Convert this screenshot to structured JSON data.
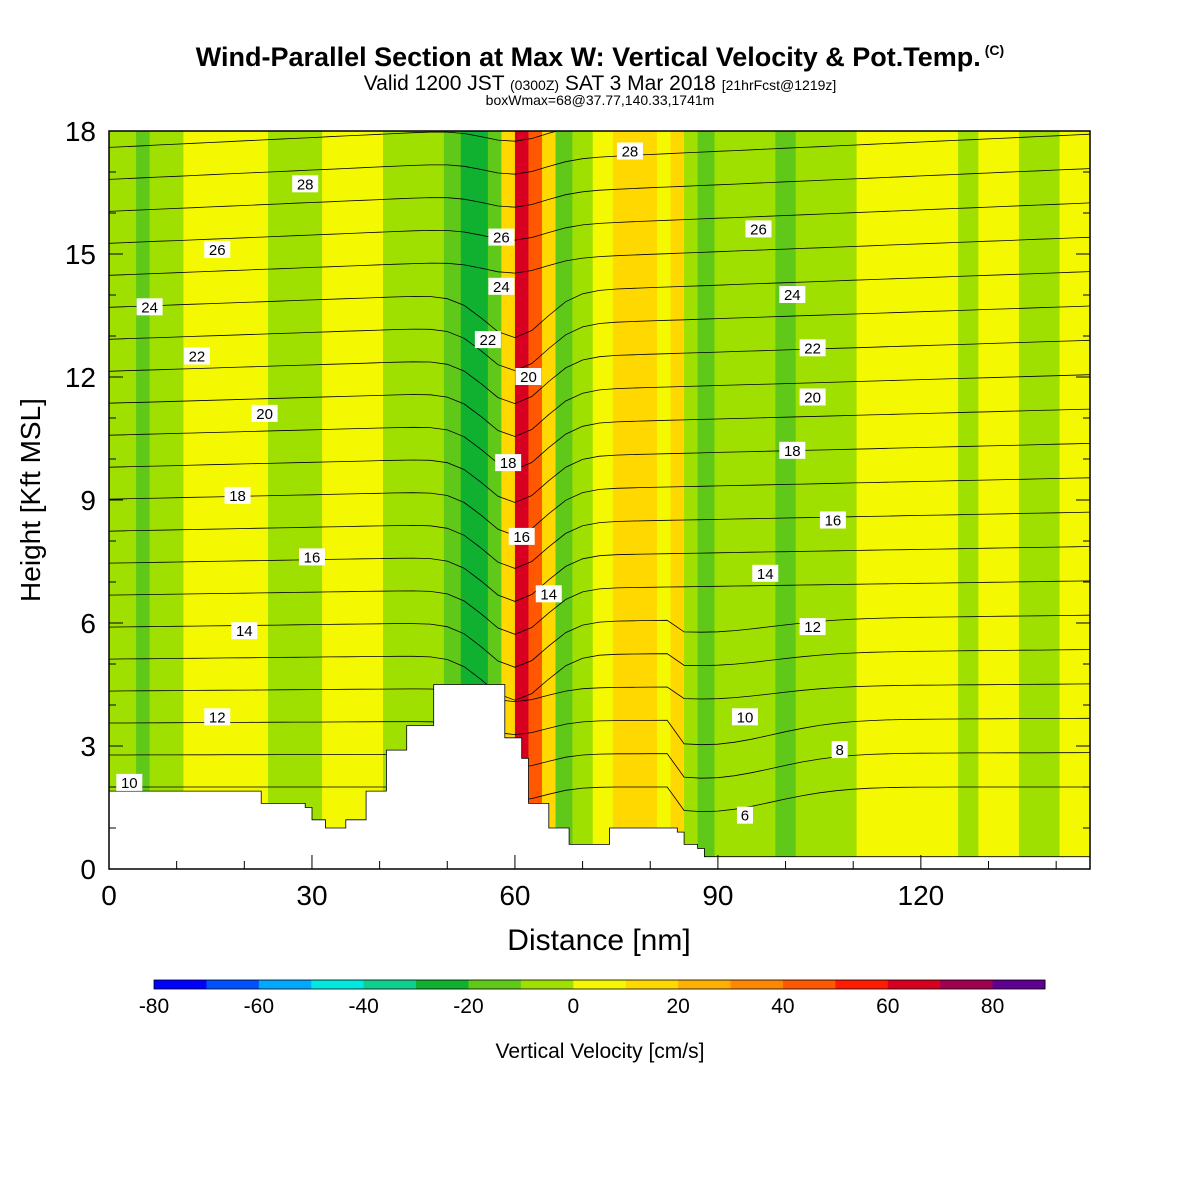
{
  "header": {
    "title": "Wind-Parallel Section at Max W: Vertical Velocity & Pot.Temp.",
    "title_suffix": "(C)",
    "subtitle_a": "Valid 1200 JST",
    "subtitle_b": "(0300Z)",
    "subtitle_c": "SAT 3 Mar 2018",
    "subtitle_d": "[21hrFcst@1219z]",
    "subtitle2": "boxWmax=68@37.77,140.33,1741m"
  },
  "chart_data": {
    "type": "heatmap",
    "title": "Wind-Parallel Section at Max W: Vertical Velocity & Pot.Temp.",
    "xlabel": "Distance [nm]",
    "ylabel": "Height [Kft MSL]",
    "xlim": [
      0,
      145
    ],
    "ylim": [
      0,
      18
    ],
    "x_ticks": [
      0,
      30,
      60,
      90,
      120
    ],
    "y_ticks": [
      0,
      3,
      6,
      9,
      12,
      15,
      18
    ],
    "colorbar": {
      "label": "Vertical Velocity [cm/s]",
      "min": -80,
      "max": 90,
      "step": 10,
      "tick_labels": [
        -80,
        -60,
        -40,
        -20,
        0,
        20,
        40,
        60,
        80
      ],
      "colors": [
        "#0000ff",
        "#0050ff",
        "#00a8ff",
        "#00e8e0",
        "#10d090",
        "#10b030",
        "#60c818",
        "#a0e000",
        "#f4f800",
        "#ffd800",
        "#ffb000",
        "#ff8800",
        "#ff5800",
        "#ff1c00",
        "#d80020",
        "#a00050",
        "#600090"
      ]
    },
    "vertical_velocity_columns": [
      {
        "x": 0,
        "w": -4
      },
      {
        "x": 3,
        "w": -6
      },
      {
        "x": 5,
        "w": -14
      },
      {
        "x": 7,
        "w": -8
      },
      {
        "x": 10,
        "w": -3
      },
      {
        "x": 12,
        "w": 1
      },
      {
        "x": 15,
        "w": 4
      },
      {
        "x": 18,
        "w": 6
      },
      {
        "x": 20,
        "w": 5
      },
      {
        "x": 22,
        "w": 3
      },
      {
        "x": 25,
        "w": -2
      },
      {
        "x": 28,
        "w": -4
      },
      {
        "x": 30,
        "w": -3
      },
      {
        "x": 33,
        "w": 0
      },
      {
        "x": 36,
        "w": 3
      },
      {
        "x": 39,
        "w": 2
      },
      {
        "x": 42,
        "w": -3
      },
      {
        "x": 45,
        "w": -6
      },
      {
        "x": 48,
        "w": -10
      },
      {
        "x": 51,
        "w": -14
      },
      {
        "x": 53,
        "w": -22
      },
      {
        "x": 55,
        "w": -30
      },
      {
        "x": 57,
        "w": -20
      },
      {
        "x": 59,
        "w": 10
      },
      {
        "x": 61,
        "w": 68
      },
      {
        "x": 63,
        "w": 45
      },
      {
        "x": 65,
        "w": 10
      },
      {
        "x": 67,
        "w": -12
      },
      {
        "x": 70,
        "w": -6
      },
      {
        "x": 73,
        "w": 4
      },
      {
        "x": 76,
        "w": 12
      },
      {
        "x": 78,
        "w": 16
      },
      {
        "x": 80,
        "w": 14
      },
      {
        "x": 82,
        "w": 6
      },
      {
        "x": 84,
        "w": 14
      },
      {
        "x": 86,
        "w": -8
      },
      {
        "x": 88,
        "w": -12
      },
      {
        "x": 91,
        "w": -10
      },
      {
        "x": 94,
        "w": -6
      },
      {
        "x": 97,
        "w": -10
      },
      {
        "x": 100,
        "w": -12
      },
      {
        "x": 103,
        "w": -10
      },
      {
        "x": 106,
        "w": -6
      },
      {
        "x": 109,
        "w": -2
      },
      {
        "x": 112,
        "w": 2
      },
      {
        "x": 115,
        "w": 5
      },
      {
        "x": 118,
        "w": 4
      },
      {
        "x": 121,
        "w": 2
      },
      {
        "x": 124,
        "w": 0
      },
      {
        "x": 127,
        "w": -2
      },
      {
        "x": 130,
        "w": 2
      },
      {
        "x": 133,
        "w": 3
      },
      {
        "x": 136,
        "w": -2
      },
      {
        "x": 139,
        "w": -4
      },
      {
        "x": 142,
        "w": 1
      },
      {
        "x": 145,
        "w": 2
      }
    ],
    "terrain_height_kft": [
      {
        "x": 0,
        "h": 1.9
      },
      {
        "x": 22,
        "h": 1.9
      },
      {
        "x": 22.5,
        "h": 1.6
      },
      {
        "x": 29,
        "h": 1.5
      },
      {
        "x": 30,
        "h": 1.2
      },
      {
        "x": 32,
        "h": 1.0
      },
      {
        "x": 35,
        "h": 1.2
      },
      {
        "x": 38,
        "h": 1.9
      },
      {
        "x": 41,
        "h": 2.9
      },
      {
        "x": 44,
        "h": 3.5
      },
      {
        "x": 48,
        "h": 4.5
      },
      {
        "x": 58,
        "h": 4.5
      },
      {
        "x": 58.5,
        "h": 3.2
      },
      {
        "x": 61,
        "h": 2.7
      },
      {
        "x": 62,
        "h": 1.6
      },
      {
        "x": 65,
        "h": 1.0
      },
      {
        "x": 68,
        "h": 0.6
      },
      {
        "x": 74,
        "h": 1.0
      },
      {
        "x": 84,
        "h": 0.9
      },
      {
        "x": 85,
        "h": 0.6
      },
      {
        "x": 87,
        "h": 0.5
      },
      {
        "x": 88,
        "h": 0.3
      },
      {
        "x": 145,
        "h": 0.3
      }
    ],
    "potential_temperature_contours": {
      "label_values": [
        "6",
        "8",
        "10",
        "12",
        "14",
        "16",
        "18",
        "20",
        "22",
        "24",
        "26",
        "28"
      ],
      "labels": [
        {
          "text": "28",
          "x": 29,
          "y": 16.7
        },
        {
          "text": "28",
          "x": 77,
          "y": 17.5
        },
        {
          "text": "26",
          "x": 16,
          "y": 15.1
        },
        {
          "text": "26",
          "x": 58,
          "y": 15.4
        },
        {
          "text": "26",
          "x": 96,
          "y": 15.6
        },
        {
          "text": "24",
          "x": 6,
          "y": 13.7
        },
        {
          "text": "24",
          "x": 58,
          "y": 14.2
        },
        {
          "text": "24",
          "x": 101,
          "y": 14.0
        },
        {
          "text": "22",
          "x": 13,
          "y": 12.5
        },
        {
          "text": "22",
          "x": 56,
          "y": 12.9
        },
        {
          "text": "22",
          "x": 104,
          "y": 12.7
        },
        {
          "text": "20",
          "x": 23,
          "y": 11.1
        },
        {
          "text": "20",
          "x": 62,
          "y": 12.0
        },
        {
          "text": "20",
          "x": 104,
          "y": 11.5
        },
        {
          "text": "18",
          "x": 19,
          "y": 9.1
        },
        {
          "text": "18",
          "x": 59,
          "y": 9.9
        },
        {
          "text": "18",
          "x": 101,
          "y": 10.2
        },
        {
          "text": "16",
          "x": 30,
          "y": 7.6
        },
        {
          "text": "16",
          "x": 61,
          "y": 8.1
        },
        {
          "text": "16",
          "x": 107,
          "y": 8.5
        },
        {
          "text": "14",
          "x": 20,
          "y": 5.8
        },
        {
          "text": "14",
          "x": 65,
          "y": 6.7
        },
        {
          "text": "14",
          "x": 97,
          "y": 7.2
        },
        {
          "text": "12",
          "x": 16,
          "y": 3.7
        },
        {
          "text": "12",
          "x": 104,
          "y": 5.9
        },
        {
          "text": "10",
          "x": 3,
          "y": 2.1
        },
        {
          "text": "10",
          "x": 94,
          "y": 3.7
        },
        {
          "text": "8",
          "x": 108,
          "y": 2.9
        },
        {
          "text": "6",
          "x": 94,
          "y": 1.3
        }
      ]
    }
  },
  "colors": {
    "background": "#ffffff",
    "terrain": "#ffffff",
    "contour": "#000000"
  }
}
